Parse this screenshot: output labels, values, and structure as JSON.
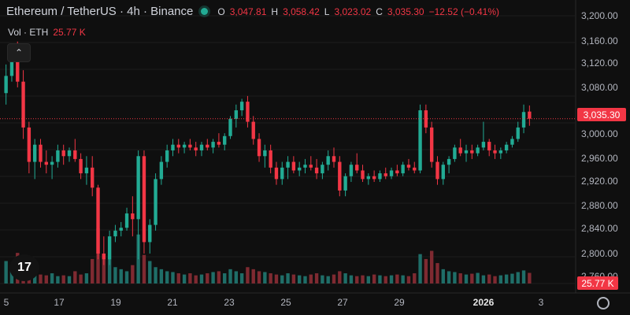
{
  "legend": {
    "symbol": "Ethereum / TetherUS · 4h · Binance",
    "status_color": "#22ab94",
    "open_key": "O",
    "open": "3,047.81",
    "high_key": "H",
    "high": "3,058.42",
    "low_key": "L",
    "low": "3,023.02",
    "close_key": "C",
    "close": "3,035.30",
    "change": "−12.52 (−0.41%)"
  },
  "volume": {
    "label": "Vol · ETH",
    "value": "25.77 K"
  },
  "collapse_icon": "chevron-up-icon",
  "logo_text": "17",
  "price_axis": [
    "3,200.00",
    "3,160.00",
    "3,120.00",
    "3,080.00",
    "3,000.00",
    "2,960.00",
    "2,920.00",
    "2,880.00",
    "2,840.00",
    "2,800.00",
    "2,760.00"
  ],
  "last_price_label": "3,035.30",
  "volume_tag": "25.77 K",
  "time_axis": [
    "5",
    "17",
    "19",
    "21",
    "23",
    "25",
    "27",
    "29",
    "2026",
    "3"
  ],
  "colors": {
    "up": "#22ab94",
    "down": "#f23645",
    "up_vol": "#1f6e68",
    "down_vol": "#7f2a31",
    "background": "#0f0f0f"
  },
  "chart_data": {
    "type": "candlestick",
    "symbol": "ETHUSDT",
    "interval": "4h",
    "ylim": [
      2745,
      3215
    ],
    "last_close": 3035.3,
    "candles": [
      [
        3080,
        3130,
        3060,
        3110
      ],
      [
        3110,
        3150,
        3100,
        3140
      ],
      [
        3140,
        3170,
        3090,
        3100
      ],
      [
        3100,
        3120,
        3000,
        3020
      ],
      [
        3020,
        3030,
        2940,
        2960
      ],
      [
        2960,
        3000,
        2930,
        2990
      ],
      [
        2990,
        3000,
        2950,
        2960
      ],
      [
        2960,
        2980,
        2940,
        2955
      ],
      [
        2955,
        2970,
        2930,
        2960
      ],
      [
        2960,
        2990,
        2950,
        2980
      ],
      [
        2980,
        2990,
        2955,
        2970
      ],
      [
        2970,
        2985,
        2960,
        2980
      ],
      [
        2980,
        3000,
        2960,
        2965
      ],
      [
        2965,
        2975,
        2930,
        2940
      ],
      [
        2940,
        2970,
        2920,
        2950
      ],
      [
        2950,
        2970,
        2900,
        2915
      ],
      [
        2915,
        2920,
        2790,
        2800
      ],
      [
        2800,
        2830,
        2780,
        2790
      ],
      [
        2790,
        2840,
        2780,
        2830
      ],
      [
        2830,
        2850,
        2820,
        2840
      ],
      [
        2840,
        2855,
        2830,
        2845
      ],
      [
        2845,
        2880,
        2840,
        2870
      ],
      [
        2870,
        2900,
        2830,
        2860
      ],
      [
        2860,
        2980,
        2790,
        2970
      ],
      [
        2970,
        2980,
        2800,
        2820
      ],
      [
        2820,
        2860,
        2800,
        2850
      ],
      [
        2850,
        2940,
        2840,
        2930
      ],
      [
        2930,
        2970,
        2920,
        2960
      ],
      [
        2960,
        2990,
        2950,
        2980
      ],
      [
        2980,
        3000,
        2970,
        2990
      ],
      [
        2990,
        3000,
        2975,
        2985
      ],
      [
        2985,
        2995,
        2975,
        2990
      ],
      [
        2990,
        3000,
        2980,
        2985
      ],
      [
        2985,
        2995,
        2970,
        2980
      ],
      [
        2980,
        2995,
        2970,
        2990
      ],
      [
        2990,
        3000,
        2980,
        2985
      ],
      [
        2985,
        3000,
        2975,
        2995
      ],
      [
        2995,
        3010,
        2985,
        2990
      ],
      [
        2990,
        3010,
        2980,
        3005
      ],
      [
        3005,
        3040,
        3000,
        3035
      ],
      [
        3035,
        3060,
        3020,
        3050
      ],
      [
        3050,
        3070,
        3040,
        3065
      ],
      [
        3065,
        3075,
        3020,
        3030
      ],
      [
        3030,
        3040,
        2990,
        3000
      ],
      [
        3000,
        3010,
        2960,
        2970
      ],
      [
        2970,
        2990,
        2950,
        2980
      ],
      [
        2980,
        2990,
        2940,
        2950
      ],
      [
        2950,
        2960,
        2920,
        2930
      ],
      [
        2930,
        2960,
        2920,
        2950
      ],
      [
        2950,
        2970,
        2930,
        2960
      ],
      [
        2960,
        2970,
        2940,
        2945
      ],
      [
        2945,
        2960,
        2935,
        2950
      ],
      [
        2950,
        2965,
        2940,
        2955
      ],
      [
        2955,
        2970,
        2945,
        2950
      ],
      [
        2950,
        2965,
        2930,
        2940
      ],
      [
        2940,
        2960,
        2930,
        2955
      ],
      [
        2955,
        2980,
        2945,
        2970
      ],
      [
        2970,
        2985,
        2950,
        2960
      ],
      [
        2960,
        2970,
        2900,
        2910
      ],
      [
        2910,
        2940,
        2900,
        2935
      ],
      [
        2935,
        2960,
        2925,
        2955
      ],
      [
        2955,
        2975,
        2940,
        2945
      ],
      [
        2945,
        2955,
        2925,
        2930
      ],
      [
        2930,
        2940,
        2920,
        2935
      ],
      [
        2935,
        2945,
        2925,
        2930
      ],
      [
        2930,
        2945,
        2925,
        2940
      ],
      [
        2940,
        2950,
        2930,
        2935
      ],
      [
        2935,
        2950,
        2930,
        2945
      ],
      [
        2945,
        2955,
        2935,
        2940
      ],
      [
        2940,
        2960,
        2935,
        2955
      ],
      [
        2955,
        2965,
        2945,
        2950
      ],
      [
        2950,
        2960,
        2940,
        2945
      ],
      [
        2945,
        3060,
        2940,
        3050
      ],
      [
        3050,
        3060,
        3010,
        3020
      ],
      [
        3020,
        3030,
        2950,
        2960
      ],
      [
        2960,
        2970,
        2920,
        2930
      ],
      [
        2930,
        2960,
        2920,
        2955
      ],
      [
        2955,
        2970,
        2940,
        2965
      ],
      [
        2965,
        2990,
        2960,
        2985
      ],
      [
        2985,
        3000,
        2970,
        2975
      ],
      [
        2975,
        2990,
        2960,
        2980
      ],
      [
        2980,
        2990,
        2965,
        2975
      ],
      [
        2975,
        2990,
        2970,
        2985
      ],
      [
        2985,
        3030,
        2980,
        2995
      ],
      [
        2995,
        3000,
        2970,
        2980
      ],
      [
        2980,
        2990,
        2965,
        2975
      ],
      [
        2975,
        2985,
        2965,
        2980
      ],
      [
        2980,
        2995,
        2975,
        2990
      ],
      [
        2990,
        3005,
        2985,
        3000
      ],
      [
        3000,
        3030,
        2995,
        3020
      ],
      [
        3020,
        3060,
        3010,
        3047
      ],
      [
        3047.81,
        3058.42,
        3023.02,
        3035.3
      ]
    ],
    "volumes": [
      55,
      45,
      75,
      40,
      28,
      30,
      22,
      20,
      25,
      18,
      20,
      18,
      30,
      22,
      25,
      60,
      135,
      70,
      60,
      40,
      35,
      30,
      45,
      120,
      70,
      55,
      40,
      35,
      30,
      28,
      25,
      22,
      25,
      20,
      22,
      25,
      28,
      30,
      25,
      35,
      30,
      25,
      40,
      35,
      30,
      28,
      25,
      22,
      20,
      25,
      22,
      20,
      18,
      22,
      25,
      20,
      18,
      22,
      30,
      25,
      20,
      18,
      20,
      18,
      22,
      20,
      18,
      20,
      22,
      20,
      18,
      25,
      72,
      60,
      80,
      50,
      35,
      30,
      28,
      25,
      22,
      24,
      26,
      20,
      22,
      18,
      20,
      22,
      24,
      28,
      32,
      26
    ]
  }
}
